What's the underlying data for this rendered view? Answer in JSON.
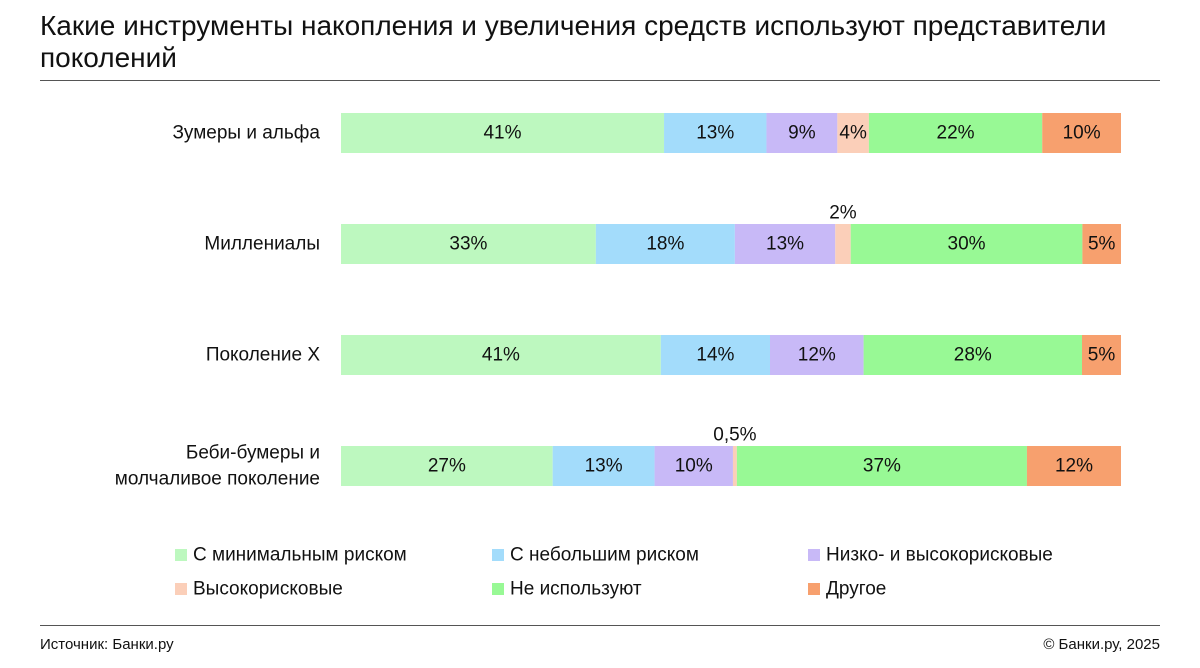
{
  "title": "Какие инструменты накопления и увеличения средств используют представители поколений",
  "footer": {
    "source": "Источник: Банки.ру",
    "copyright": "© Банки.ру, 2025"
  },
  "chart_data": {
    "type": "bar",
    "orientation": "horizontal",
    "stacked": true,
    "normalized": true,
    "categories": [
      [
        "Зумеры и альфа"
      ],
      [
        "Миллениалы"
      ],
      [
        "Поколение X"
      ],
      [
        "Беби-бумеры и",
        "молчаливое поколение"
      ]
    ],
    "series": [
      {
        "name": "С минимальным риском",
        "color": "#bdf8bf",
        "values": [
          41,
          33,
          41,
          27
        ],
        "labels": [
          "41%",
          "33%",
          "41%",
          "27%"
        ]
      },
      {
        "name": "С небольшим риском",
        "color": "#a3dcfb",
        "values": [
          13,
          18,
          14,
          13
        ],
        "labels": [
          "13%",
          "18%",
          "14%",
          "13%"
        ]
      },
      {
        "name": "Низко- и высокорисковые",
        "color": "#c8b9f7",
        "values": [
          9,
          13,
          12,
          10
        ],
        "labels": [
          "9%",
          "13%",
          "12%",
          "10%"
        ]
      },
      {
        "name": "Высокорисковые",
        "color": "#fbcfb9",
        "values": [
          4,
          2,
          0,
          0.5
        ],
        "labels": [
          "4%",
          "2%",
          "",
          "0,5%"
        ]
      },
      {
        "name": "Не используют",
        "color": "#98f995",
        "values": [
          22,
          30,
          28,
          37
        ],
        "labels": [
          "22%",
          "30%",
          "28%",
          "37%"
        ]
      },
      {
        "name": "Другое",
        "color": "#f7a06e",
        "values": [
          10,
          5,
          5,
          12
        ],
        "labels": [
          "10%",
          "5%",
          "5%",
          "12%"
        ]
      }
    ],
    "legend": {
      "placement": "bottom",
      "columns": 3
    }
  }
}
